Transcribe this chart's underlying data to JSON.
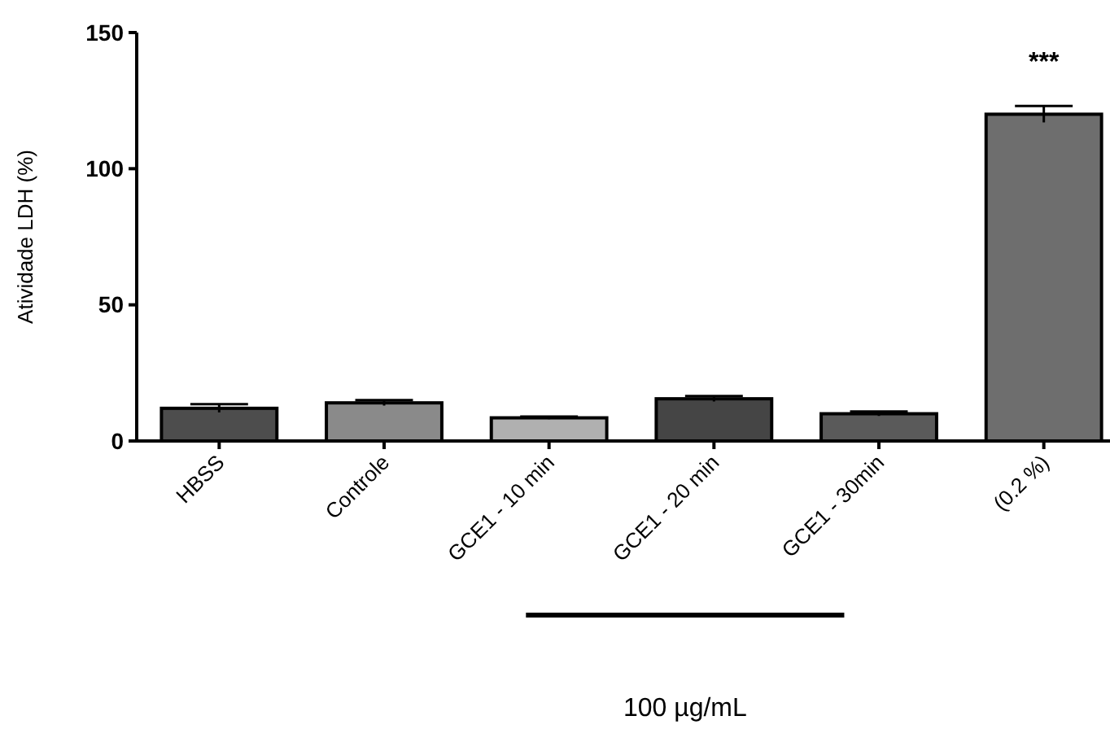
{
  "chart_data": {
    "type": "bar",
    "ylabel": "Atividade LDH (%)",
    "categories": [
      "HBSS",
      "Controle",
      "GCE1 - 10 min",
      "GCE1 - 20 min",
      "GCE1 - 30min",
      "(0.2 %)"
    ],
    "values": [
      12,
      14,
      8.5,
      15.5,
      10,
      120
    ],
    "errors": [
      1.5,
      1,
      0.5,
      1,
      0.8,
      3
    ],
    "colors": [
      "#4d4d4d",
      "#8a8a8a",
      "#b0b0b0",
      "#454545",
      "#5a5a5a",
      "#6e6e6e"
    ],
    "ylim": [
      0,
      150
    ],
    "yticks": [
      0,
      50,
      100,
      150
    ],
    "annotations": [
      {
        "text": "***",
        "x": "(0.2 %)",
        "y": 123
      },
      "100 µg/mL"
    ]
  }
}
